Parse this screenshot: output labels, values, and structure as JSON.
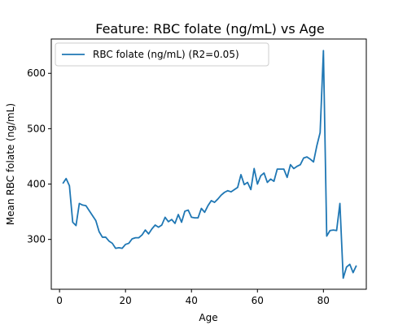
{
  "chart_data": {
    "type": "line",
    "title": "Feature: RBC folate (ng/mL) vs Age",
    "xlabel": "Age",
    "ylabel": "Mean RBC folate (ng/mL)",
    "xlim": [
      -2.5,
      93
    ],
    "ylim": [
      210,
      662
    ],
    "xticks": [
      0,
      20,
      40,
      60,
      80
    ],
    "yticks": [
      300,
      400,
      500,
      600
    ],
    "grid": false,
    "legend_position": "top-left",
    "series": [
      {
        "name": "RBC folate (ng/mL) (R2=0.05)",
        "color": "#1f77b4",
        "x": [
          1,
          2,
          3,
          4,
          5,
          6,
          7,
          8,
          9,
          10,
          11,
          12,
          13,
          14,
          15,
          16,
          17,
          18,
          19,
          20,
          21,
          22,
          23,
          24,
          25,
          26,
          27,
          28,
          29,
          30,
          31,
          32,
          33,
          34,
          35,
          36,
          37,
          38,
          39,
          40,
          41,
          42,
          43,
          44,
          45,
          46,
          47,
          48,
          49,
          50,
          51,
          52,
          53,
          54,
          55,
          56,
          57,
          58,
          59,
          60,
          61,
          62,
          63,
          64,
          65,
          66,
          67,
          68,
          69,
          70,
          71,
          72,
          73,
          74,
          75,
          76,
          77,
          78,
          79,
          80,
          81,
          82,
          83,
          84,
          85,
          86,
          87,
          88,
          89,
          90
        ],
        "y": [
          401,
          410,
          397,
          331,
          325,
          365,
          362,
          361,
          352,
          343,
          334,
          314,
          304,
          304,
          297,
          293,
          284,
          285,
          284,
          291,
          293,
          301,
          303,
          303,
          308,
          317,
          310,
          319,
          326,
          322,
          326,
          340,
          332,
          336,
          329,
          345,
          331,
          351,
          353,
          340,
          339,
          339,
          356,
          349,
          361,
          370,
          367,
          373,
          380,
          385,
          388,
          386,
          390,
          394,
          417,
          399,
          403,
          390,
          428,
          400,
          415,
          420,
          403,
          409,
          405,
          427,
          427,
          427,
          412,
          435,
          428,
          432,
          435,
          447,
          449,
          445,
          440,
          469,
          493,
          641,
          306,
          316,
          317,
          316,
          365,
          230,
          250,
          255,
          240,
          253
        ]
      }
    ]
  }
}
